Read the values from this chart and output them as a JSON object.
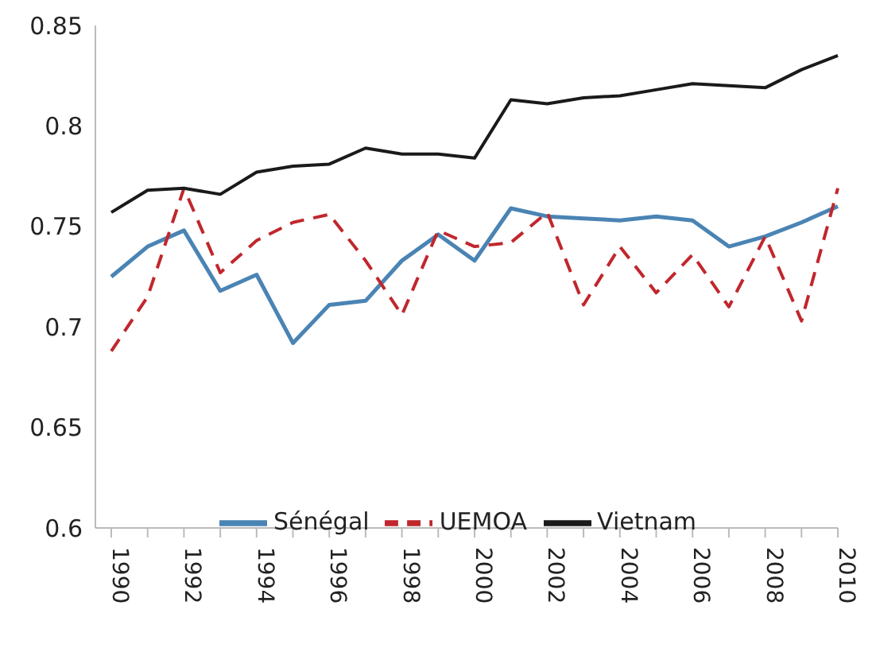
{
  "chart_data": {
    "type": "line",
    "categories": [
      "1990",
      null,
      "1992",
      null,
      "1994",
      null,
      "1996",
      null,
      "1998",
      null,
      "2000",
      null,
      "2002",
      null,
      "2004",
      null,
      "2006",
      null,
      "2008",
      null,
      "2010"
    ],
    "series": [
      {
        "name": "Sénégal",
        "color": "#4a84b4",
        "values": [
          0.725,
          0.74,
          0.748,
          0.718,
          0.726,
          0.692,
          0.711,
          0.713,
          0.733,
          0.746,
          0.733,
          0.759,
          0.755,
          0.754,
          0.753,
          0.755,
          0.753,
          0.74,
          0.745,
          0.752,
          0.76
        ]
      },
      {
        "name": "UEMOA",
        "color": "#c0272d",
        "line_style": "dashed",
        "values": [
          0.688,
          0.715,
          0.769,
          0.727,
          0.743,
          0.752,
          0.756,
          0.733,
          0.706,
          0.748,
          0.74,
          0.742,
          0.757,
          0.711,
          0.74,
          0.717,
          0.736,
          0.71,
          0.745,
          0.703,
          0.769
        ]
      },
      {
        "name": "Vietnam",
        "color": "#1a1a1a",
        "values": [
          0.757,
          0.768,
          0.769,
          0.766,
          0.777,
          0.78,
          0.781,
          0.789,
          0.786,
          0.786,
          0.784,
          0.813,
          0.811,
          0.814,
          0.815,
          0.818,
          0.821,
          0.82,
          0.819,
          0.828,
          0.835
        ]
      }
    ],
    "ylim": [
      0.6,
      0.85
    ],
    "yticks": [
      0.6,
      0.65,
      0.7,
      0.75,
      0.8,
      0.85
    ],
    "grid": false,
    "legend": "bottom",
    "marker": "none",
    "line_style": "solid"
  }
}
